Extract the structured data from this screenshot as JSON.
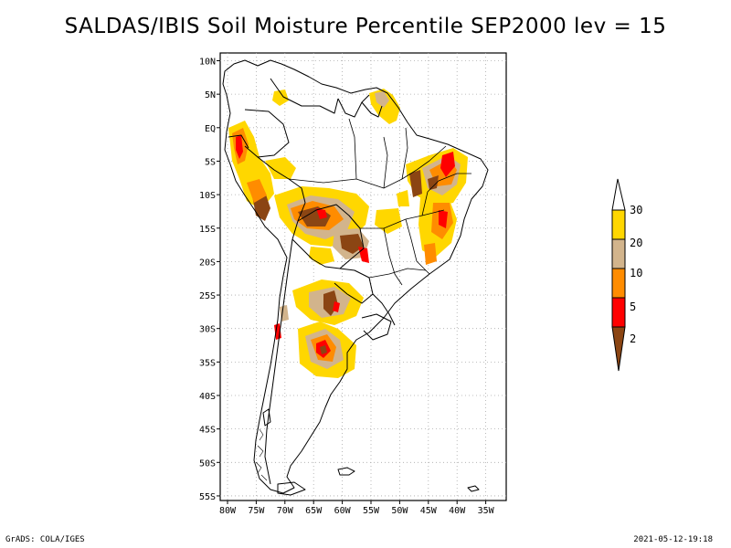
{
  "title": "SALDAS/IBIS Soil Moisture Percentile SEP2000 lev = 15",
  "footer": {
    "left": "GrADS: COLA/IGES",
    "right": "2021-05-12-19:18"
  },
  "map": {
    "region": "South America",
    "projection": "latlon",
    "lon_range": [
      -80,
      -32
    ],
    "lat_range": [
      -56,
      11
    ],
    "lon_ticks": [
      "80W",
      "75W",
      "70W",
      "65W",
      "60W",
      "55W",
      "50W",
      "45W",
      "40W",
      "35W"
    ],
    "lat_ticks": [
      "10N",
      "5N",
      "EQ",
      "5S",
      "10S",
      "15S",
      "20S",
      "25S",
      "30S",
      "35S",
      "40S",
      "45S",
      "50S",
      "55S"
    ],
    "grid": "dotted"
  },
  "legend": {
    "levels": [
      "2",
      "5",
      "10",
      "20",
      "30"
    ],
    "colors": [
      "#8b4513",
      "#ff0000",
      "#ff8c00",
      "#d2b48c",
      "#ffd700",
      "#ffffff"
    ]
  },
  "colors": {
    "below_2": "#8b4513",
    "2_to_5": "#ff0000",
    "5_to_10": "#ff8c00",
    "10_to_20": "#d2b48c",
    "20_to_30": "#ffd700",
    "above_30": "#ffffff"
  }
}
